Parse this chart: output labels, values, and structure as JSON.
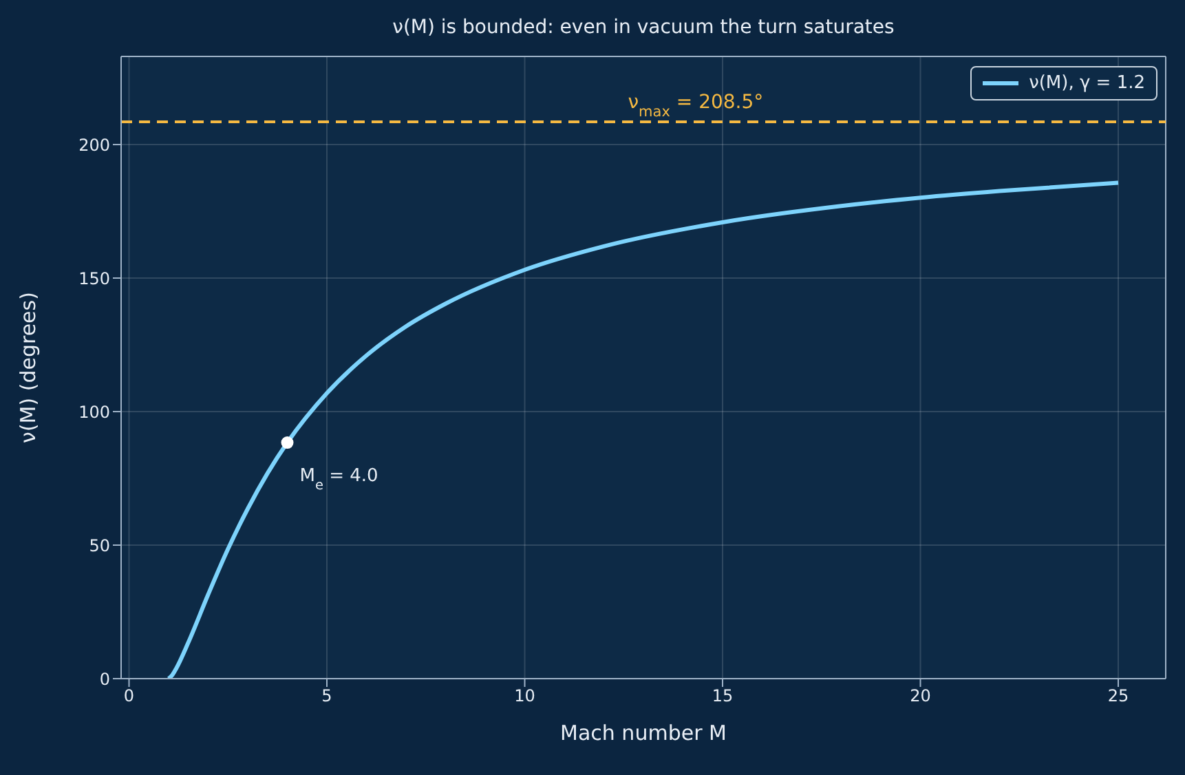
{
  "chart_data": {
    "type": "line",
    "title": "ν(M) is bounded: even in vacuum the turn saturates",
    "xlabel": "Mach number M",
    "ylabel": "ν(M) (degrees)",
    "series": [
      {
        "name": "ν(M), γ = 1.2",
        "color": "#7dd3fc",
        "marker": "none",
        "x": [
          1,
          1.1,
          1.2,
          1.5,
          2,
          2.5,
          3,
          3.5,
          4,
          5,
          6,
          7,
          8,
          10,
          12,
          15,
          18,
          20,
          22,
          25
        ],
        "values": [
          0,
          1.5,
          4,
          13.6,
          31.5,
          48.5,
          63.6,
          76.9,
          88.4,
          106.9,
          121,
          131.9,
          140.4,
          153.1,
          161.9,
          170.9,
          177,
          180.1,
          182.6,
          185.7
        ]
      },
      {
        "type": "scatter",
        "color": "#ffffff",
        "marker": "circle",
        "x": [
          4
        ],
        "values": [
          88.4
        ]
      }
    ],
    "annotations": [
      {
        "text": "M$_{e}$ = 4.0",
        "x": 4,
        "y": 88.4
      }
    ],
    "ref_lines": [
      {
        "axis": "y",
        "value": 208.5,
        "label": "ν$_{max}$ = 208.5°",
        "color": "#f5b942",
        "line_style": "dashed"
      }
    ],
    "xlim": [
      -0.2,
      26.2
    ],
    "xticks": [
      0,
      5,
      10,
      15,
      20,
      25
    ],
    "ylim": [
      0,
      233
    ],
    "yticks": [
      0,
      50,
      100,
      150,
      200
    ],
    "grid": true,
    "legend": "top right"
  }
}
